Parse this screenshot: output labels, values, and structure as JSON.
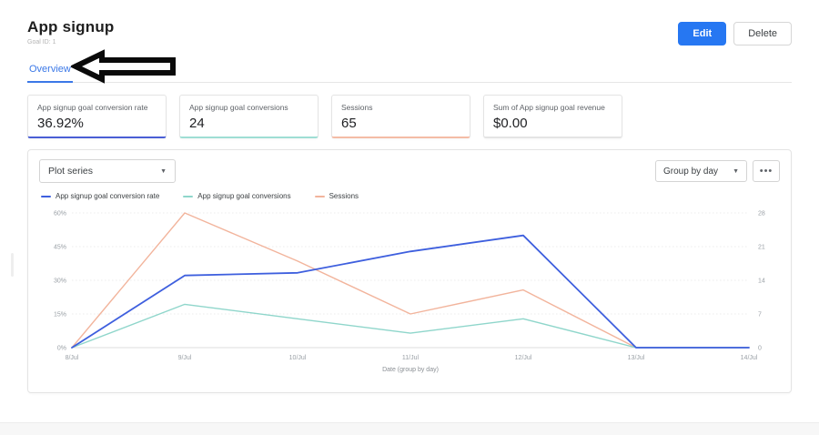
{
  "header": {
    "title": "App signup",
    "subtitle": "Goal ID: 1",
    "edit_label": "Edit",
    "delete_label": "Delete"
  },
  "tabs": {
    "overview_label": "Overview"
  },
  "cards": [
    {
      "label": "App signup goal conversion rate",
      "value": "36.92%",
      "accent": "#4a5fd5"
    },
    {
      "label": "App signup goal conversions",
      "value": "24",
      "accent": "#9fded4"
    },
    {
      "label": "Sessions",
      "value": "65",
      "accent": "#f4bca6"
    },
    {
      "label": "Sum of App signup goal revenue",
      "value": "$0.00",
      "accent": "#e4e4e4"
    }
  ],
  "toolbar": {
    "plot_series_label": "Plot series",
    "group_by_label": "Group by day",
    "more_label": "•••"
  },
  "chart_data": {
    "type": "line",
    "x": [
      "8/Jul",
      "9/Jul",
      "10/Jul",
      "11/Jul",
      "12/Jul",
      "13/Jul",
      "14/Jul"
    ],
    "series": [
      {
        "name": "App signup goal conversion rate",
        "axis": "left",
        "color": "#3e5fde",
        "values": [
          0,
          32.14,
          33.33,
          42.86,
          50,
          0,
          0
        ]
      },
      {
        "name": "App signup goal conversions",
        "axis": "right",
        "color": "#8fd6cb",
        "values": [
          0,
          9,
          6,
          3,
          6,
          0,
          0
        ]
      },
      {
        "name": "Sessions",
        "axis": "right",
        "color": "#f2b49c",
        "values": [
          0,
          28,
          18,
          7,
          12,
          0,
          0
        ]
      }
    ],
    "left_axis": {
      "ticks": [
        "0%",
        "15%",
        "30%",
        "45%",
        "60%"
      ],
      "min": 0,
      "max": 60
    },
    "right_axis": {
      "ticks": [
        "0",
        "7",
        "14",
        "21",
        "28"
      ],
      "min": 0,
      "max": 28
    },
    "xlabel": "Date (group by day)",
    "grid": true,
    "legend_position": "top-left"
  }
}
